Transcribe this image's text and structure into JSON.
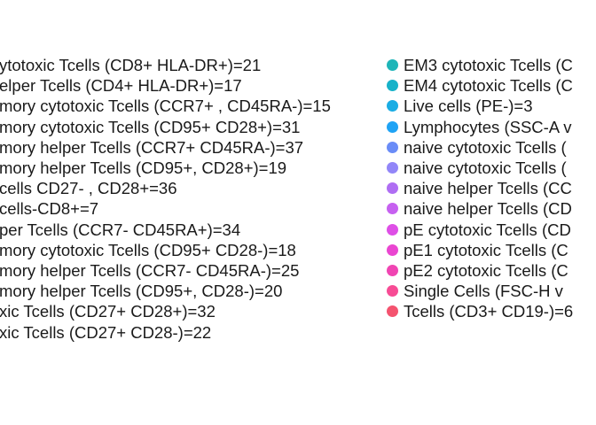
{
  "chart_data": {
    "type": "scatter",
    "legend_placement": "right",
    "legend_columns": [
      {
        "entries": [
          {
            "label": "ytotoxic Tcells (CD8+ HLA-DR+)=21"
          },
          {
            "label": "elper Tcells (CD4+ HLA-DR+)=17"
          },
          {
            "label": "mory cytotoxic Tcells (CCR7+ , CD45RA-)=15"
          },
          {
            "label": "mory cytotoxic Tcells (CD95+ CD28+)=31"
          },
          {
            "label": "mory helper Tcells (CCR7+ CD45RA-)=37"
          },
          {
            "label": "mory helper Tcells (CD95+, CD28+)=19"
          },
          {
            "label": "cells CD27- , CD28+=36"
          },
          {
            "label": "cells-CD8+=7"
          },
          {
            "label": "per Tcells (CCR7- CD45RA+)=34"
          },
          {
            "label": "mory cytotoxic Tcells (CD95+ CD28-)=18"
          },
          {
            "label": "mory helper Tcells (CCR7- CD45RA-)=25"
          },
          {
            "label": "mory helper Tcells (CD95+, CD28-)=20"
          },
          {
            "label": "xic Tcells (CD27+  CD28+)=32"
          },
          {
            "label": "xic Tcells (CD27+  CD28-)=22"
          }
        ]
      },
      {
        "entries": [
          {
            "label": "EM3 cytotoxic Tcells (C",
            "color": "#1EB5B8"
          },
          {
            "label": "EM4 cytotoxic Tcells (C",
            "color": "#17B2C9"
          },
          {
            "label": "Live cells (PE-)=3",
            "color": "#1AADE4"
          },
          {
            "label": "Lymphocytes (SSC-A v",
            "color": "#1FA3F5"
          },
          {
            "label": "naive cytotoxic Tcells (",
            "color": "#6A8CF7"
          },
          {
            "label": "naive cytotoxic Tcells (",
            "color": "#9286F8"
          },
          {
            "label": "naive helper Tcells (CC",
            "color": "#AF6EF3"
          },
          {
            "label": "naive helper Tcells (CD",
            "color": "#C661F0"
          },
          {
            "label": "pE cytotoxic Tcells (CD",
            "color": "#DE4FE6"
          },
          {
            "label": "pE1 cytotoxic Tcells (C",
            "color": "#EA46D1"
          },
          {
            "label": "pE2 cytotoxic Tcells (C",
            "color": "#F045B3"
          },
          {
            "label": "Single Cells (FSC-H v",
            "color": "#F74C95"
          },
          {
            "label": "Tcells (CD3+ CD19-)=6",
            "color": "#F4536F"
          }
        ]
      }
    ]
  }
}
